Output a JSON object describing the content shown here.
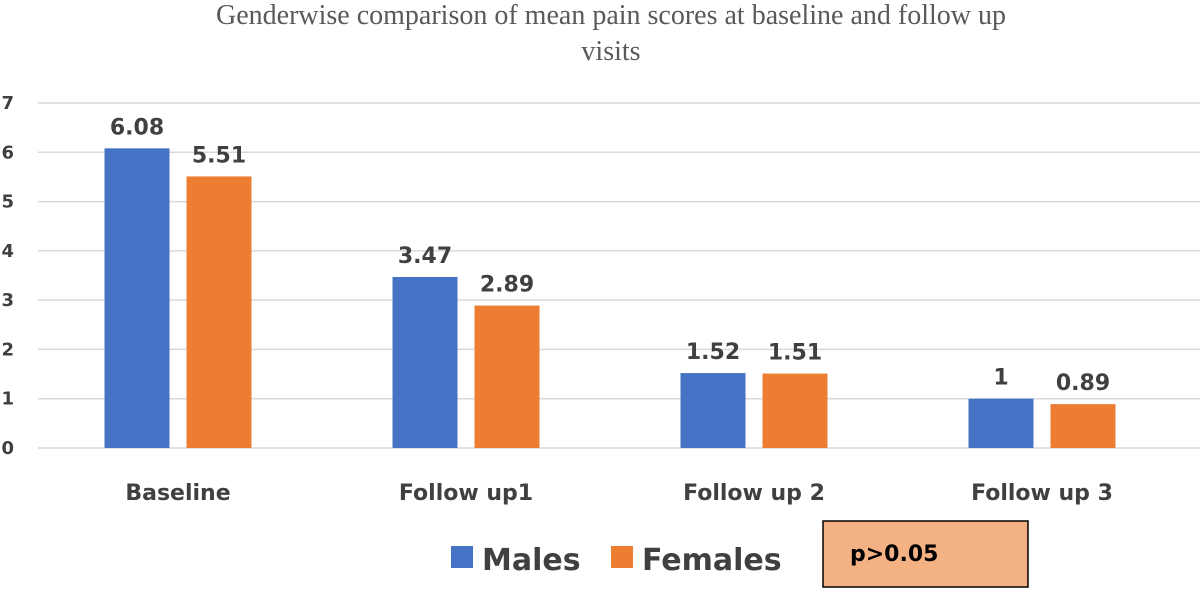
{
  "chart_data": {
    "type": "bar",
    "title_line1": "Genderwise comparison of mean pain scores at baseline and follow up",
    "title_line2": "visits",
    "categories": [
      "Baseline",
      "Follow up1",
      "Follow up 2",
      "Follow up 3"
    ],
    "series": [
      {
        "name": "Males",
        "color": "#4472C4",
        "values": [
          6.08,
          3.47,
          1.52,
          1
        ],
        "labels": [
          "6.08",
          "3.47",
          "1.52",
          "1"
        ]
      },
      {
        "name": "Females",
        "color": "#ED7D31",
        "values": [
          5.51,
          2.89,
          1.51,
          0.89
        ],
        "labels": [
          "5.51",
          "2.89",
          "1.51",
          "0.89"
        ]
      }
    ],
    "ylim": [
      0,
      7
    ],
    "yticks": [
      "0",
      "1",
      "2",
      "3",
      "4",
      "5",
      "6",
      "7"
    ],
    "grid": true,
    "legend_position": "bottom",
    "annotation": "p>0.05",
    "annotation_fill": "#F4B183"
  }
}
